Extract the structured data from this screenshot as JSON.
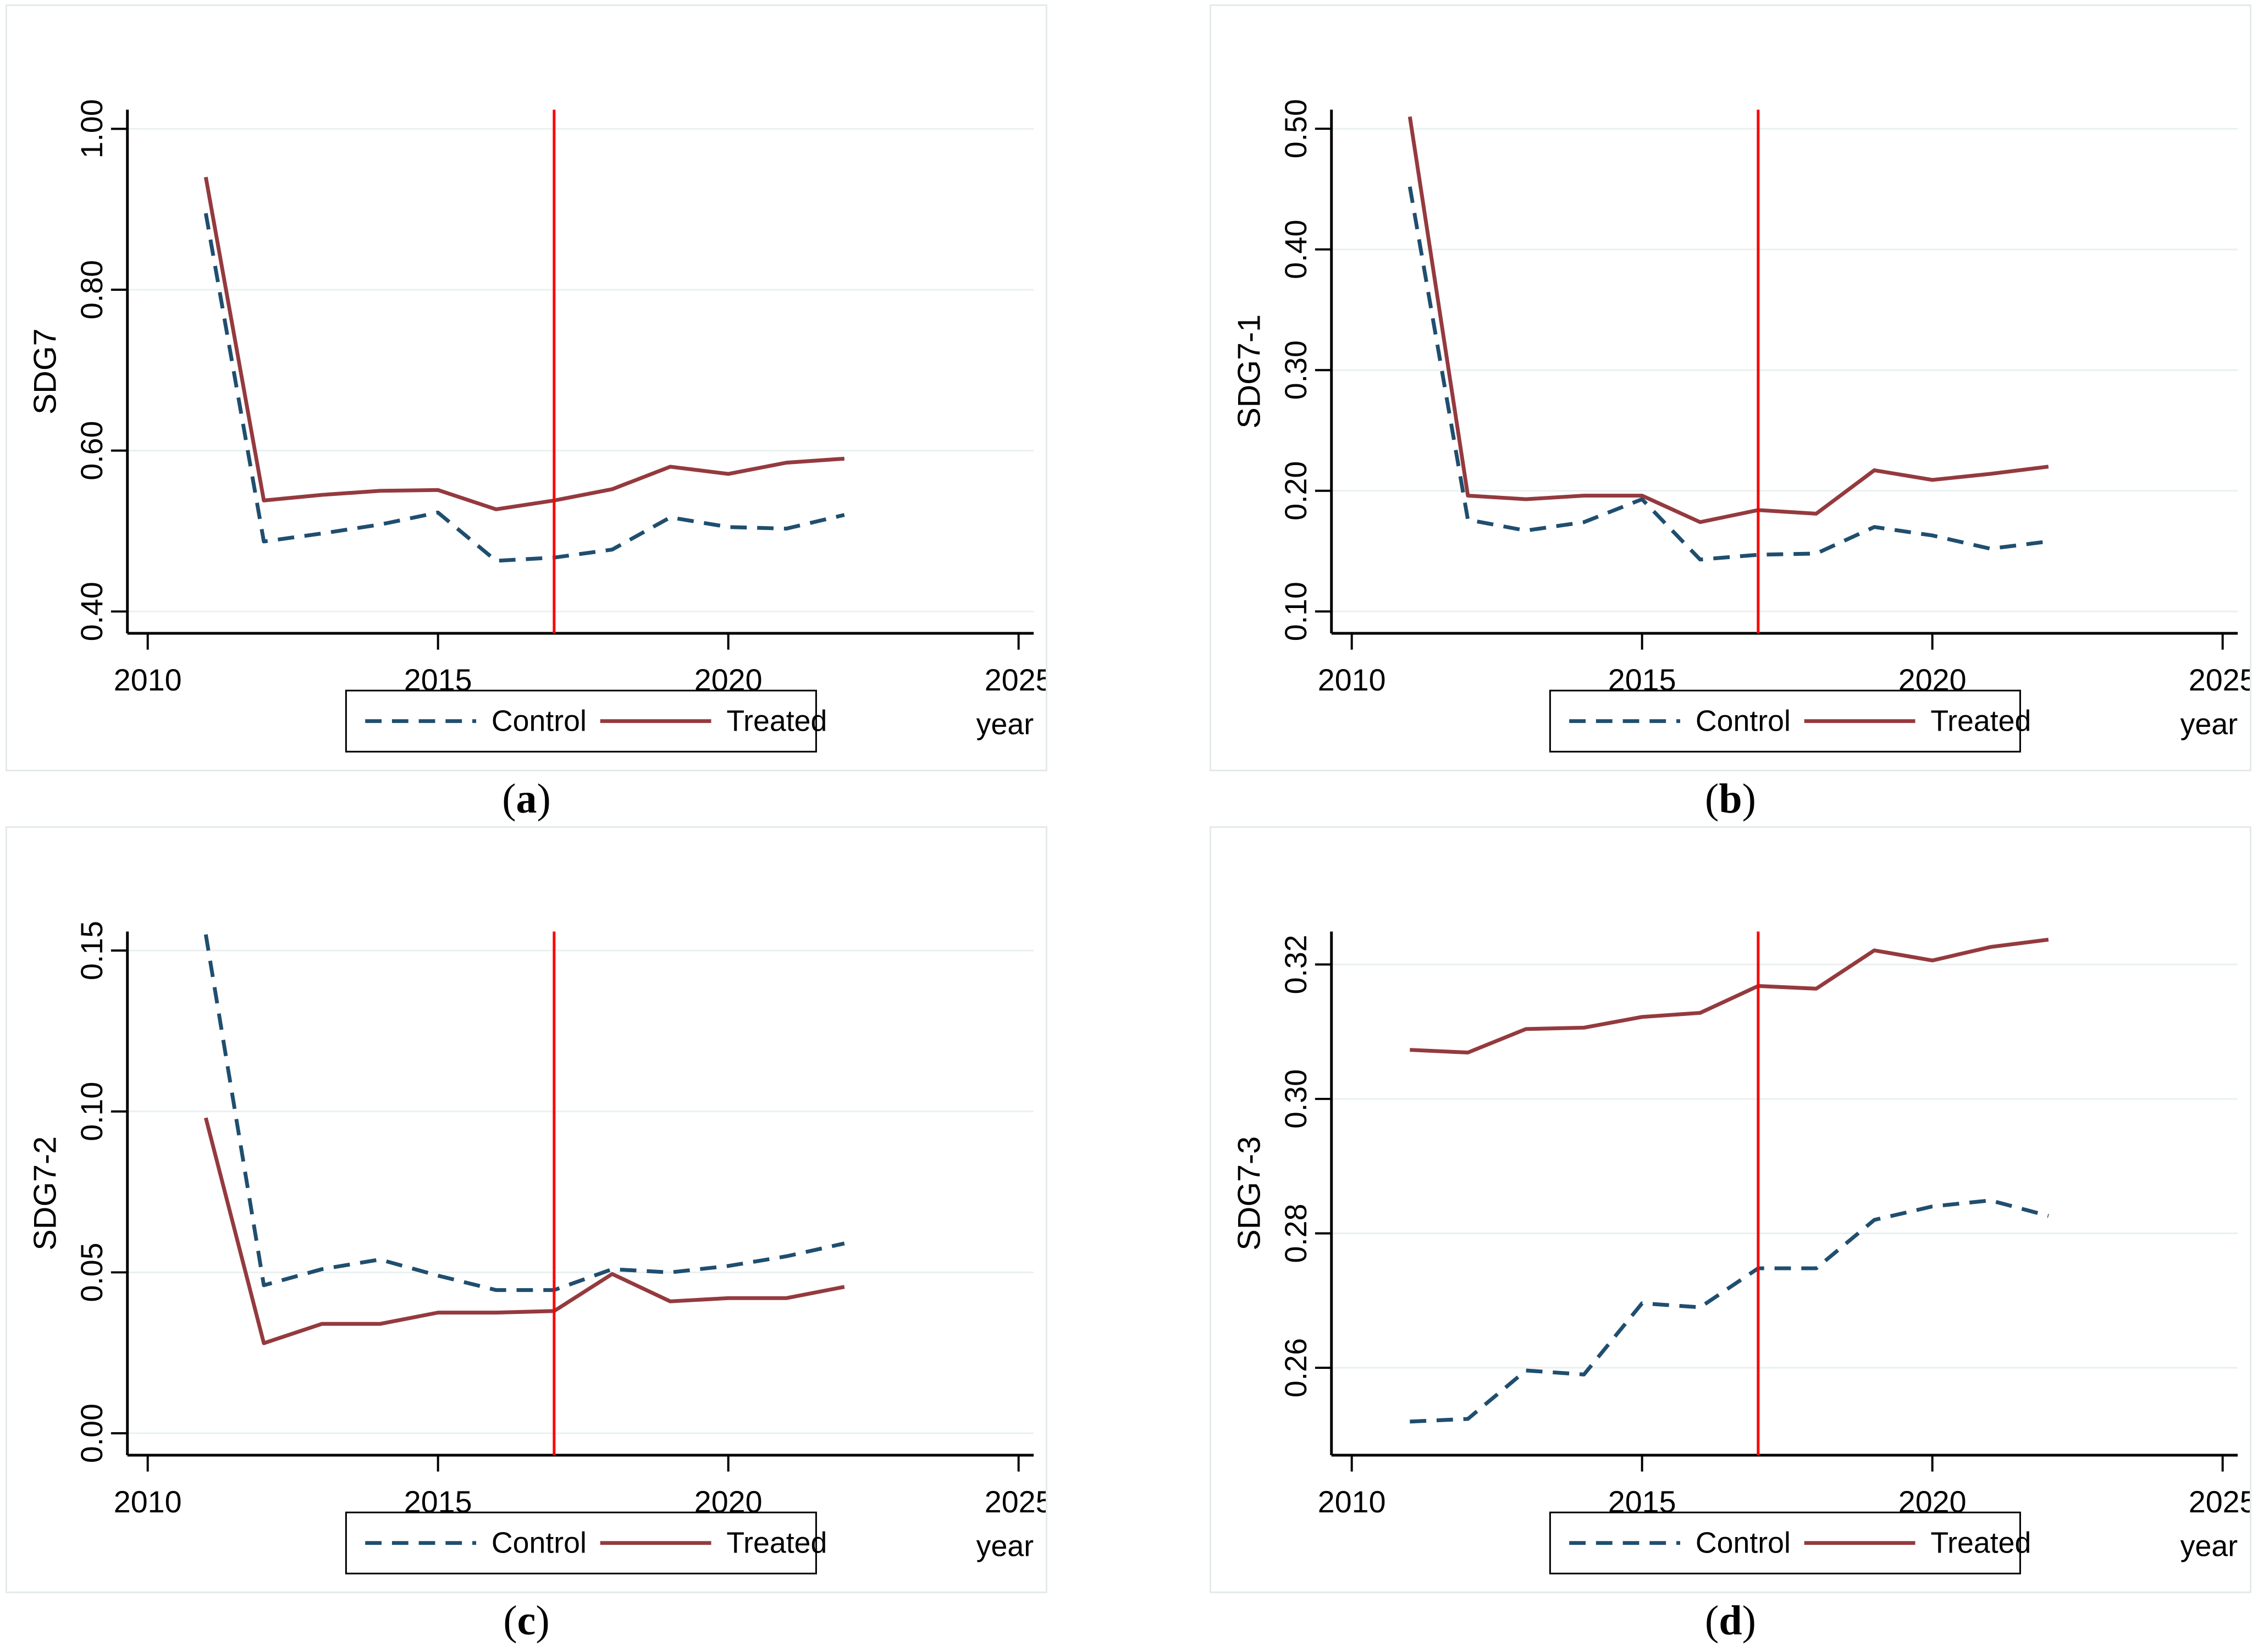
{
  "colors": {
    "control": "#1f4e6f",
    "treated": "#943a3e",
    "vline": "#ff0000",
    "grid": "#e9f0f2",
    "axis": "#000000",
    "legend_border": "#000000",
    "panel_border": "#e4eaec"
  },
  "chart_data": [
    {
      "type": "line",
      "caption": {
        "open": "(",
        "letter": "a",
        "close": ")"
      },
      "ylabel": "SDG7",
      "xlabel": "year",
      "x": [
        2011,
        2012,
        2013,
        2014,
        2015,
        2016,
        2017,
        2018,
        2019,
        2020,
        2021,
        2022
      ],
      "xticks": {
        "values": [
          2010,
          2015,
          2020,
          2025
        ],
        "labels": [
          "2010",
          "2015",
          "2020",
          "2025"
        ]
      },
      "yticks": {
        "values": [
          0.4,
          0.6,
          0.8,
          1.0
        ],
        "labels": [
          "0.40",
          "0.60",
          "0.80",
          "1.00"
        ]
      },
      "xlim": [
        2009.65,
        2025.26
      ],
      "ylim": [
        0.3729,
        1.0238
      ],
      "vline_x": 2017,
      "legend": [
        "Control",
        "Treated"
      ],
      "series": [
        {
          "name": "Control",
          "dash": true,
          "color_key": "control",
          "values": [
            0.895,
            0.487,
            0.497,
            0.508,
            0.523,
            0.463,
            0.467,
            0.477,
            0.517,
            0.505,
            0.503,
            0.52
          ]
        },
        {
          "name": "Treated",
          "dash": false,
          "color_key": "treated",
          "values": [
            0.94,
            0.538,
            0.545,
            0.55,
            0.551,
            0.527,
            0.538,
            0.552,
            0.58,
            0.571,
            0.585,
            0.59
          ]
        }
      ]
    },
    {
      "type": "line",
      "caption": {
        "open": "(",
        "letter": "b",
        "close": ")"
      },
      "ylabel": "SDG7-1",
      "xlabel": "year",
      "x": [
        2011,
        2012,
        2013,
        2014,
        2015,
        2016,
        2017,
        2018,
        2019,
        2020,
        2021,
        2022
      ],
      "xticks": {
        "values": [
          2010,
          2015,
          2020,
          2025
        ],
        "labels": [
          "2010",
          "2015",
          "2020",
          "2025"
        ]
      },
      "yticks": {
        "values": [
          0.1,
          0.2,
          0.3,
          0.4,
          0.5
        ],
        "labels": [
          "0.10",
          "0.20",
          "0.30",
          "0.40",
          "0.50"
        ]
      },
      "xlim": [
        2009.65,
        2025.26
      ],
      "ylim": [
        0.0819,
        0.5158
      ],
      "vline_x": 2017,
      "legend": [
        "Control",
        "Treated"
      ],
      "series": [
        {
          "name": "Control",
          "dash": true,
          "color_key": "control",
          "values": [
            0.452,
            0.176,
            0.167,
            0.174,
            0.193,
            0.143,
            0.147,
            0.148,
            0.17,
            0.163,
            0.152,
            0.158
          ]
        },
        {
          "name": "Treated",
          "dash": false,
          "color_key": "treated",
          "values": [
            0.51,
            0.196,
            0.193,
            0.196,
            0.196,
            0.174,
            0.184,
            0.181,
            0.217,
            0.209,
            0.214,
            0.22
          ]
        }
      ]
    },
    {
      "type": "line",
      "caption": {
        "open": "(",
        "letter": "c",
        "close": ")"
      },
      "ylabel": "SDG7-2",
      "xlabel": "year",
      "x": [
        2011,
        2012,
        2013,
        2014,
        2015,
        2016,
        2017,
        2018,
        2019,
        2020,
        2021,
        2022
      ],
      "xticks": {
        "values": [
          2010,
          2015,
          2020,
          2025
        ],
        "labels": [
          "2010",
          "2015",
          "2020",
          "2025"
        ]
      },
      "yticks": {
        "values": [
          0.0,
          0.05,
          0.1,
          0.15
        ],
        "labels": [
          "0.00",
          "0.05",
          "0.10",
          "0.15"
        ]
      },
      "xlim": [
        2009.65,
        2025.26
      ],
      "ylim": [
        -0.0068,
        0.1559
      ],
      "vline_x": 2017,
      "legend": [
        "Control",
        "Treated"
      ],
      "series": [
        {
          "name": "Control",
          "dash": true,
          "color_key": "control",
          "values": [
            0.155,
            0.046,
            0.051,
            0.054,
            0.049,
            0.0445,
            0.0445,
            0.051,
            0.05,
            0.052,
            0.055,
            0.059
          ]
        },
        {
          "name": "Treated",
          "dash": false,
          "color_key": "treated",
          "values": [
            0.098,
            0.028,
            0.034,
            0.034,
            0.0375,
            0.0375,
            0.038,
            0.0495,
            0.041,
            0.042,
            0.042,
            0.0455
          ]
        }
      ]
    },
    {
      "type": "line",
      "caption": {
        "open": "(",
        "letter": "d",
        "close": ")"
      },
      "ylabel": "SDG7-3",
      "xlabel": "year",
      "x": [
        2011,
        2012,
        2013,
        2014,
        2015,
        2016,
        2017,
        2018,
        2019,
        2020,
        2021,
        2022
      ],
      "xticks": {
        "values": [
          2010,
          2015,
          2020,
          2025
        ],
        "labels": [
          "2010",
          "2015",
          "2020",
          "2025"
        ]
      },
      "yticks": {
        "values": [
          0.26,
          0.28,
          0.3,
          0.32
        ],
        "labels": [
          "0.26",
          "0.28",
          "0.30",
          "0.32"
        ]
      },
      "xlim": [
        2009.65,
        2025.26
      ],
      "ylim": [
        0.247,
        0.3249
      ],
      "vline_x": 2017,
      "legend": [
        "Control",
        "Treated"
      ],
      "series": [
        {
          "name": "Control",
          "dash": true,
          "color_key": "control",
          "values": [
            0.252,
            0.2524,
            0.2596,
            0.259,
            0.2696,
            0.269,
            0.2748,
            0.2748,
            0.282,
            0.284,
            0.2849,
            0.2826
          ]
        },
        {
          "name": "Treated",
          "dash": false,
          "color_key": "treated",
          "values": [
            0.3073,
            0.3069,
            0.3104,
            0.3106,
            0.3122,
            0.3128,
            0.3168,
            0.3164,
            0.3221,
            0.3206,
            0.3226,
            0.3237
          ]
        }
      ]
    }
  ]
}
